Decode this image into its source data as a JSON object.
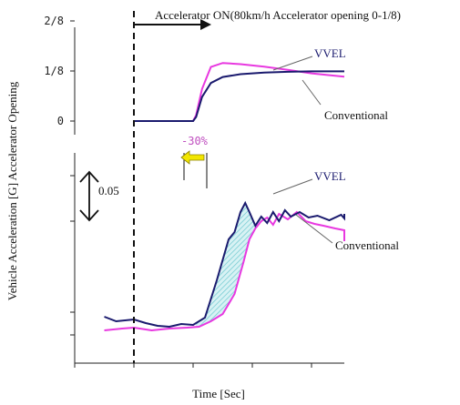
{
  "chart_data": {
    "type": "line",
    "xlabel": "Time [Sec]",
    "ylabel": "Vehicle Acceleration [G] Accelerator Opening",
    "top_panel": {
      "yticks": [
        "2/8",
        "1/8",
        "0"
      ],
      "yvalues": [
        0.25,
        0.125,
        0
      ],
      "series": [
        {
          "name": "VVEL",
          "color": "#1a1a6e",
          "points": [
            [
              0,
              0
            ],
            [
              0.9,
              0
            ],
            [
              1.0,
              0
            ],
            [
              1.05,
              0.01
            ],
            [
              1.15,
              0.06
            ],
            [
              1.3,
              0.095
            ],
            [
              1.5,
              0.11
            ],
            [
              1.8,
              0.117
            ],
            [
              2.2,
              0.121
            ],
            [
              2.6,
              0.123
            ],
            [
              3.0,
              0.124
            ],
            [
              3.6,
              0.124
            ],
            [
              4.6,
              0.124
            ]
          ]
        },
        {
          "name": "Conventional",
          "color": "#e838e0",
          "points": [
            [
              0,
              0
            ],
            [
              0.9,
              0
            ],
            [
              1.0,
              0
            ],
            [
              1.05,
              0.015
            ],
            [
              1.15,
              0.08
            ],
            [
              1.3,
              0.135
            ],
            [
              1.5,
              0.145
            ],
            [
              1.8,
              0.142
            ],
            [
              2.2,
              0.136
            ],
            [
              2.6,
              0.128
            ],
            [
              3.0,
              0.119
            ],
            [
              3.4,
              0.113
            ],
            [
              4.0,
              0.111
            ],
            [
              4.6,
              0.111
            ]
          ]
        }
      ]
    },
    "bottom_panel": {
      "scale_label": "0.05",
      "annotation": "-30%",
      "series": [
        {
          "name": "VVEL",
          "color": "#1a1a6e",
          "points": [
            [
              -0.5,
              -0.005
            ],
            [
              -0.3,
              -0.01
            ],
            [
              0.0,
              -0.008
            ],
            [
              0.2,
              -0.012
            ],
            [
              0.4,
              -0.015
            ],
            [
              0.6,
              -0.016
            ],
            [
              0.8,
              -0.013
            ],
            [
              1.0,
              -0.014
            ],
            [
              1.2,
              -0.006
            ],
            [
              1.4,
              0.035
            ],
            [
              1.6,
              0.08
            ],
            [
              1.7,
              0.088
            ],
            [
              1.8,
              0.11
            ],
            [
              1.88,
              0.12
            ],
            [
              1.95,
              0.11
            ],
            [
              2.05,
              0.095
            ],
            [
              2.15,
              0.105
            ],
            [
              2.25,
              0.098
            ],
            [
              2.35,
              0.11
            ],
            [
              2.45,
              0.1
            ],
            [
              2.55,
              0.112
            ],
            [
              2.65,
              0.105
            ],
            [
              2.8,
              0.11
            ],
            [
              2.95,
              0.104
            ],
            [
              3.1,
              0.106
            ],
            [
              3.3,
              0.101
            ],
            [
              3.5,
              0.107
            ],
            [
              3.7,
              0.103
            ],
            [
              3.9,
              0.106
            ],
            [
              4.1,
              0.104
            ],
            [
              4.3,
              0.108
            ],
            [
              4.6,
              0.105
            ]
          ]
        },
        {
          "name": "Conventional",
          "color": "#e838e0",
          "points": [
            [
              -0.5,
              -0.02
            ],
            [
              -0.2,
              -0.018
            ],
            [
              0.0,
              -0.017
            ],
            [
              0.3,
              -0.02
            ],
            [
              0.6,
              -0.018
            ],
            [
              0.9,
              -0.017
            ],
            [
              1.1,
              -0.016
            ],
            [
              1.3,
              -0.01
            ],
            [
              1.5,
              -0.002
            ],
            [
              1.7,
              0.02
            ],
            [
              1.85,
              0.055
            ],
            [
              1.95,
              0.08
            ],
            [
              2.05,
              0.092
            ],
            [
              2.15,
              0.1
            ],
            [
              2.25,
              0.104
            ],
            [
              2.35,
              0.096
            ],
            [
              2.45,
              0.108
            ],
            [
              2.6,
              0.102
            ],
            [
              2.75,
              0.11
            ],
            [
              2.9,
              0.1
            ],
            [
              3.05,
              0.097
            ],
            [
              3.2,
              0.095
            ],
            [
              3.4,
              0.092
            ],
            [
              3.6,
              0.09
            ],
            [
              3.8,
              0.088
            ],
            [
              4.0,
              0.085
            ],
            [
              4.2,
              0.084
            ],
            [
              4.4,
              0.08
            ],
            [
              4.6,
              0.078
            ]
          ]
        }
      ]
    },
    "event": {
      "label": "Accelerator ON(80km/h Accelerator opening 0-1/8)",
      "x": 1.0
    }
  }
}
